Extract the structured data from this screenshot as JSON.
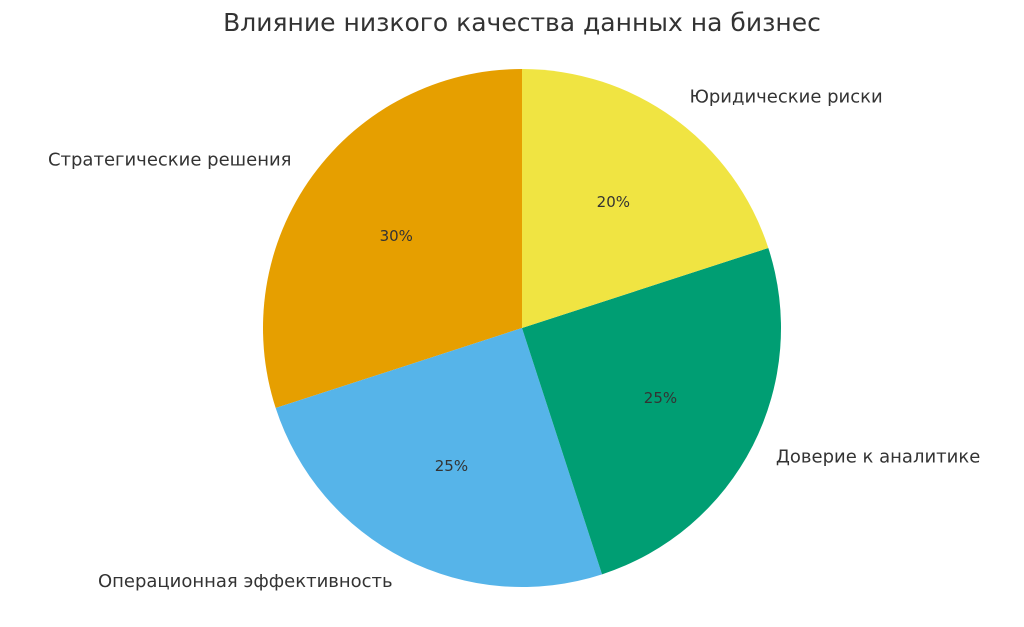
{
  "chart_data": {
    "type": "pie",
    "title": "Влияние низкого качества данных на бизнес",
    "categories": [
      "Стратегические решения",
      "Операционная эффективность",
      "Доверие к аналитике",
      "Юридические риски"
    ],
    "values": [
      30,
      25,
      25,
      20
    ],
    "value_labels": [
      "30%",
      "25%",
      "25%",
      "20%"
    ],
    "colors": [
      "#E69F00",
      "#56B4E9",
      "#009E73",
      "#F0E442"
    ],
    "start_angle": 90
  }
}
